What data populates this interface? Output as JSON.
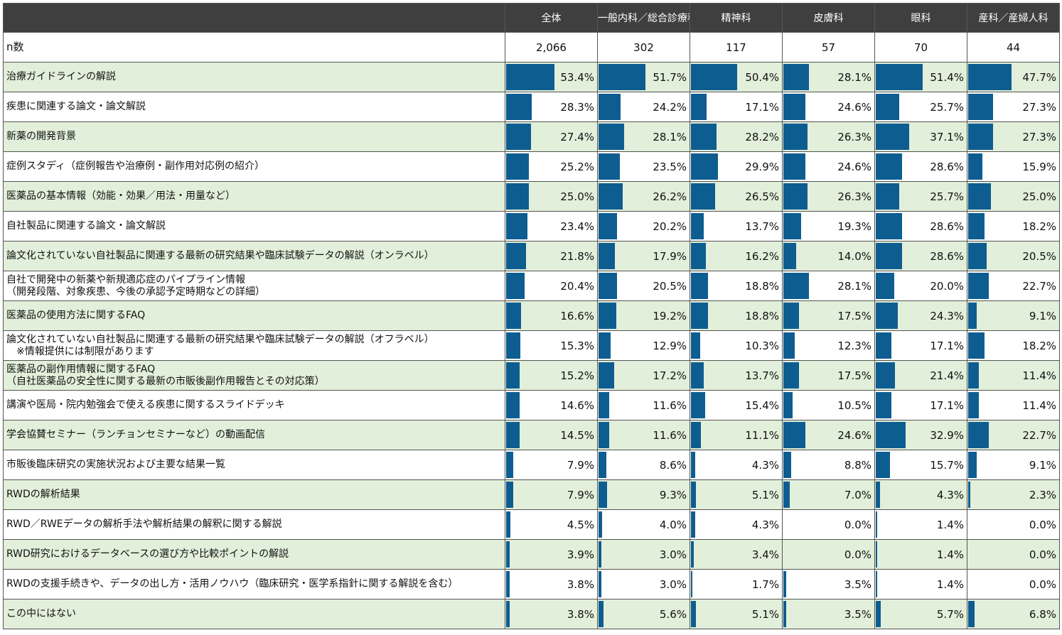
{
  "chart_data": {
    "type": "table",
    "header_row_label": "n数",
    "columns": [
      "全体",
      "一般内科／総合診療科",
      "精神科",
      "皮膚科",
      "眼科",
      "産科／産婦人科"
    ],
    "n": [
      "2,066",
      "302",
      "117",
      "57",
      "70",
      "44"
    ],
    "bar_max": 100,
    "rows": [
      {
        "label": [
          "治療ガイドラインの解説"
        ],
        "values": [
          53.4,
          51.7,
          50.4,
          28.1,
          51.4,
          47.7
        ]
      },
      {
        "label": [
          "疾患に関連する論文・論文解説"
        ],
        "values": [
          28.3,
          24.2,
          17.1,
          24.6,
          25.7,
          27.3
        ]
      },
      {
        "label": [
          "新薬の開発背景"
        ],
        "values": [
          27.4,
          28.1,
          28.2,
          26.3,
          37.1,
          27.3
        ]
      },
      {
        "label": [
          "症例スタディ（症例報告や治療例・副作用対応例の紹介）"
        ],
        "values": [
          25.2,
          23.5,
          29.9,
          24.6,
          28.6,
          15.9
        ]
      },
      {
        "label": [
          "医薬品の基本情報（効能・効果／用法・用量など）"
        ],
        "values": [
          25.0,
          26.2,
          26.5,
          26.3,
          25.7,
          25.0
        ]
      },
      {
        "label": [
          "自社製品に関連する論文・論文解説"
        ],
        "values": [
          23.4,
          20.2,
          13.7,
          19.3,
          28.6,
          18.2
        ]
      },
      {
        "label": [
          "論文化されていない自社製品に関連する最新の研究結果や臨床試験データの解説（オンラベル）"
        ],
        "values": [
          21.8,
          17.9,
          16.2,
          14.0,
          28.6,
          20.5
        ]
      },
      {
        "label": [
          "自社で開発中の新薬や新規適応症のパイプライン情報",
          "（開発段階、対象疾患、今後の承認予定時期などの詳細）"
        ],
        "values": [
          20.4,
          20.5,
          18.8,
          28.1,
          20.0,
          22.7
        ]
      },
      {
        "label": [
          "医薬品の使用方法に関するFAQ"
        ],
        "values": [
          16.6,
          19.2,
          18.8,
          17.5,
          24.3,
          9.1
        ]
      },
      {
        "label": [
          "論文化されていない自社製品に関連する最新の研究結果や臨床試験データの解説（オフラベル）",
          "　※情報提供には制限があります"
        ],
        "values": [
          15.3,
          12.9,
          10.3,
          12.3,
          17.1,
          18.2
        ]
      },
      {
        "label": [
          "医薬品の副作用情報に関するFAQ",
          "（自社医薬品の安全性に関する最新の市販後副作用報告とその対応策）"
        ],
        "values": [
          15.2,
          17.2,
          13.7,
          17.5,
          21.4,
          11.4
        ]
      },
      {
        "label": [
          "講演や医局・院内勉強会で使える疾患に関するスライドデッキ"
        ],
        "values": [
          14.6,
          11.6,
          15.4,
          10.5,
          17.1,
          11.4
        ]
      },
      {
        "label": [
          "学会協賛セミナー（ランチョンセミナーなど）の動画配信"
        ],
        "values": [
          14.5,
          11.6,
          11.1,
          24.6,
          32.9,
          22.7
        ]
      },
      {
        "label": [
          "市販後臨床研究の実施状況および主要な結果一覧"
        ],
        "values": [
          7.9,
          8.6,
          4.3,
          8.8,
          15.7,
          9.1
        ]
      },
      {
        "label": [
          "RWDの解析結果"
        ],
        "values": [
          7.9,
          9.3,
          5.1,
          7.0,
          4.3,
          2.3
        ]
      },
      {
        "label": [
          "RWD／RWEデータの解析手法や解析結果の解釈に関する解説"
        ],
        "values": [
          4.5,
          4.0,
          4.3,
          0.0,
          1.4,
          0.0
        ]
      },
      {
        "label": [
          "RWD研究におけるデータベースの選び方や比較ポイントの解説"
        ],
        "values": [
          3.9,
          3.0,
          3.4,
          0.0,
          1.4,
          0.0
        ]
      },
      {
        "label": [
          "RWDの支援手続きや、データの出し方・活用ノウハウ（臨床研究・医学系指針に関する解説を含む）"
        ],
        "values": [
          3.8,
          3.0,
          1.7,
          3.5,
          1.4,
          0.0
        ]
      },
      {
        "label": [
          "この中にはない"
        ],
        "values": [
          3.8,
          5.6,
          5.1,
          3.5,
          5.7,
          6.8
        ]
      }
    ],
    "bar_color": "#0d5d91",
    "stripe_color": "#e2efda",
    "header_color": "#3f3f3f"
  }
}
